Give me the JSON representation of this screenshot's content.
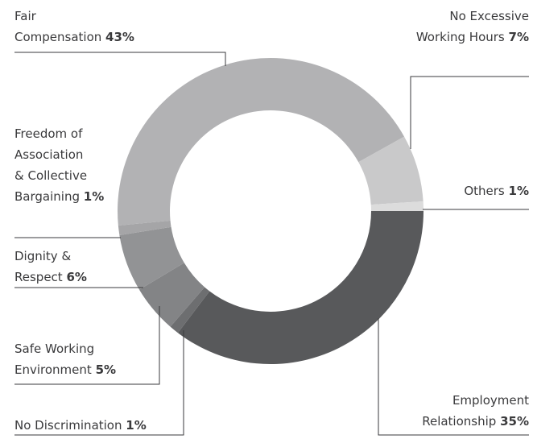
{
  "chart_data": {
    "type": "donut",
    "categories": [
      "Fair\nCompensation",
      "No Excessive\nWorking Hours",
      "Others",
      "Employment\nRelationship",
      "No Discrimination",
      "Safe Working\nEnvironment",
      "Dignity &\nRespect",
      "Freedom of\nAssociation\n& Collective\nBargaining"
    ],
    "values": [
      43,
      7,
      1,
      35,
      1,
      5,
      6,
      1
    ],
    "value_labels": [
      "43%",
      "7%",
      "1%",
      "35%",
      "1%",
      "5%",
      "6%",
      "1%"
    ],
    "colors": [
      "#b2b2b4",
      "#c9c9ca",
      "#dcdcdc",
      "#58595b",
      "#6d6e70",
      "#838486",
      "#929395",
      "#a5a5a7"
    ]
  }
}
